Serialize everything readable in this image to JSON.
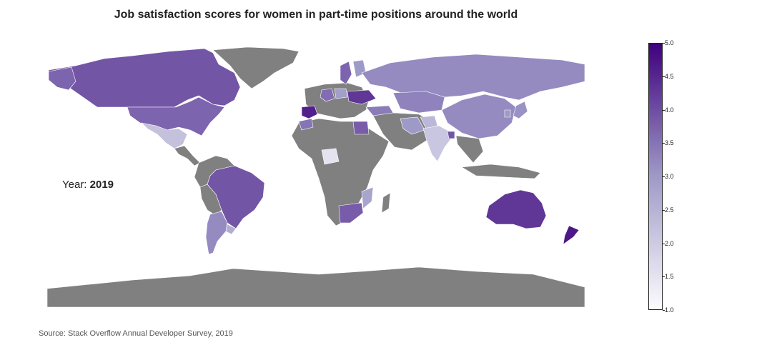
{
  "title": "Job satisfaction scores for women in part-time positions around the world",
  "year_label": "Year:",
  "year_value": "2019",
  "source": "Source: Stack Overflow Annual Developer Survey, 2019",
  "colorbar": {
    "min": 1.0,
    "max": 5.0,
    "ticks": [
      "1.0",
      "1.5",
      "2.0",
      "2.5",
      "3.0",
      "3.5",
      "4.0",
      "4.5",
      "5.0"
    ],
    "color_low": "#fcfbfd",
    "color_mid": "#9e9ac8",
    "color_high": "#3f007d"
  },
  "no_data_color": "#808080",
  "countries": [
    {
      "name": "Canada",
      "value": 3.9
    },
    {
      "name": "United States",
      "value": 3.7
    },
    {
      "name": "Mexico",
      "value": 2.2
    },
    {
      "name": "Brazil",
      "value": 3.9
    },
    {
      "name": "Argentina",
      "value": 3.2
    },
    {
      "name": "Uruguay",
      "value": 2.6
    },
    {
      "name": "Russia",
      "value": 3.2
    },
    {
      "name": "China",
      "value": 3.2
    },
    {
      "name": "India",
      "value": 2.1
    },
    {
      "name": "Bangladesh",
      "value": 3.9
    },
    {
      "name": "Japan",
      "value": 3.1
    },
    {
      "name": "South Korea",
      "value": 3.0
    },
    {
      "name": "Australia",
      "value": 4.3
    },
    {
      "name": "New Zealand",
      "value": 4.7
    },
    {
      "name": "South Africa",
      "value": 3.8
    },
    {
      "name": "Mozambique",
      "value": 2.8
    },
    {
      "name": "Niger",
      "value": 1.5
    },
    {
      "name": "Egypt",
      "value": 3.8
    },
    {
      "name": "Spain",
      "value": 4.6
    },
    {
      "name": "Morocco",
      "value": 3.5
    },
    {
      "name": "Ukraine",
      "value": 4.3
    },
    {
      "name": "Sweden",
      "value": 3.7
    },
    {
      "name": "Finland",
      "value": 3.0
    },
    {
      "name": "Germany",
      "value": 3.6
    },
    {
      "name": "Poland",
      "value": 2.9
    },
    {
      "name": "Iran",
      "value": 3.0
    },
    {
      "name": "Kazakhstan",
      "value": 3.3
    },
    {
      "name": "Turkey",
      "value": 3.4
    },
    {
      "name": "Afghanistan",
      "value": 2.4
    }
  ]
}
